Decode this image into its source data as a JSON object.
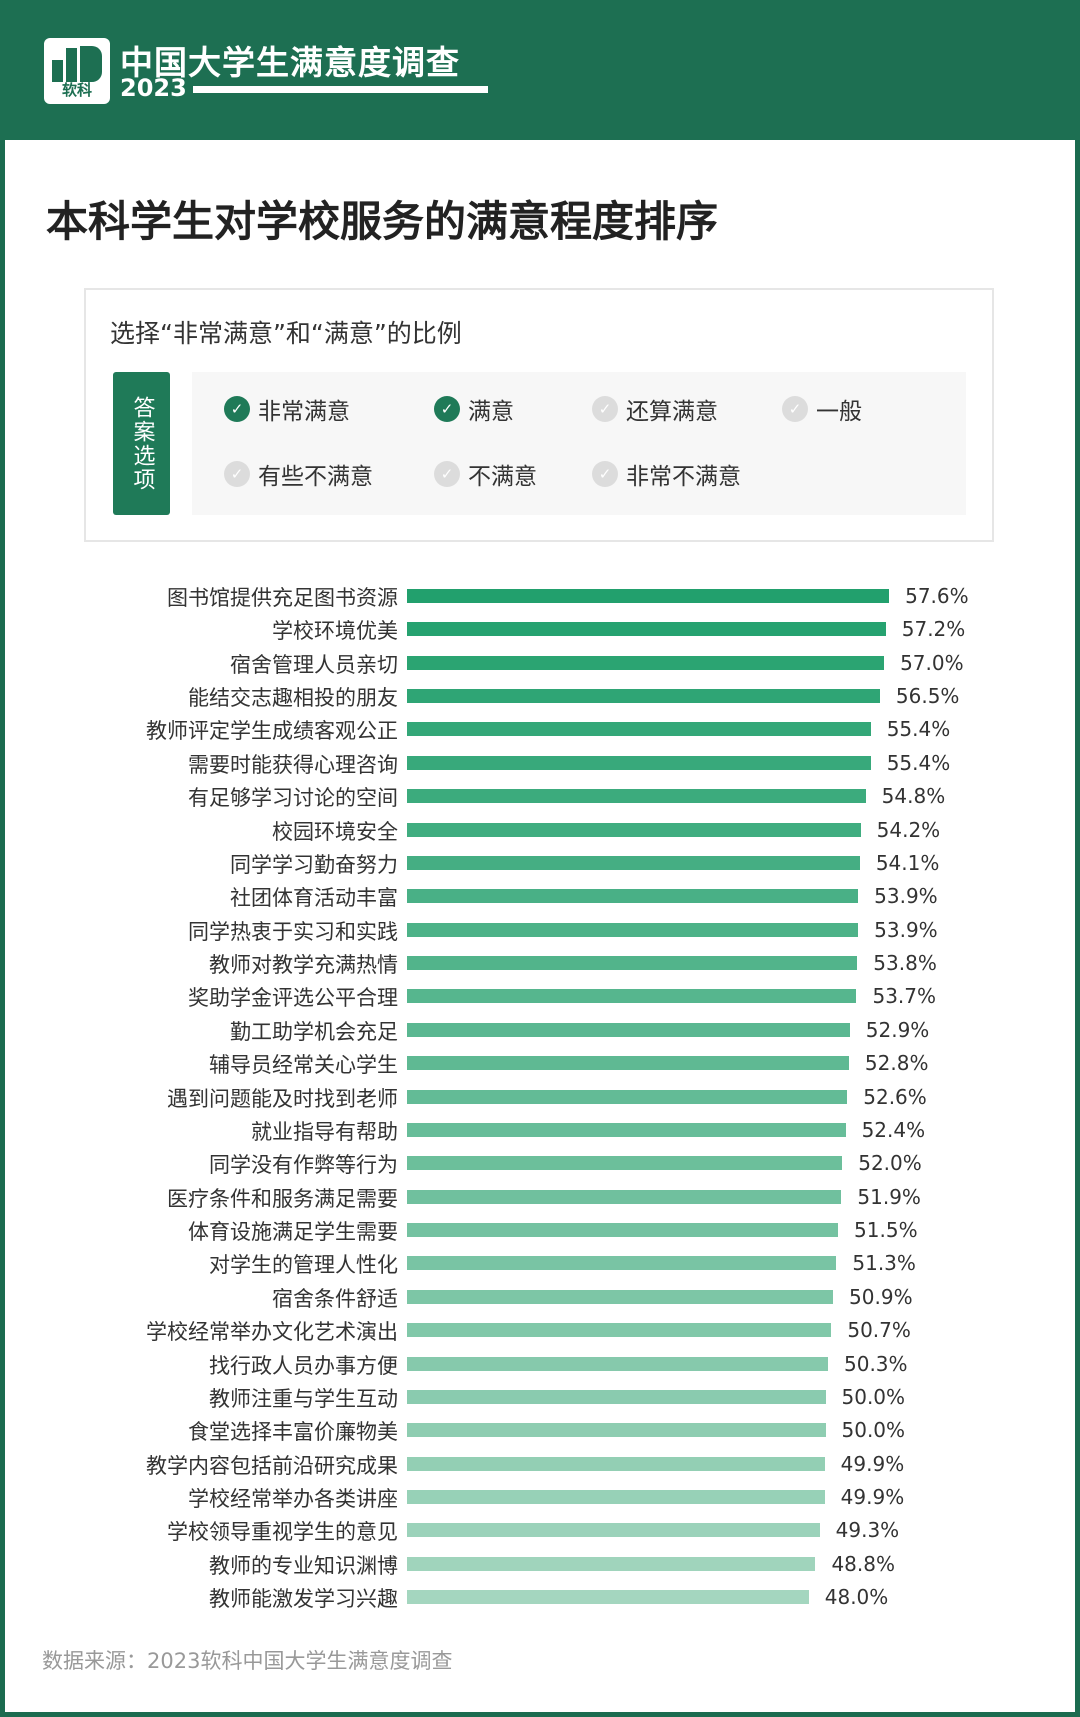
{
  "header": {
    "brand_title": "中国大学生满意度调查",
    "year": "2023",
    "logo_text": "软科"
  },
  "chart_data": {
    "type": "bar",
    "orientation": "horizontal",
    "title": "本科学生对学校服务的满意程度排序",
    "subtitle": "选择“非常满意”和“满意”的比例",
    "categories": [
      "图书馆提供充足图书资源",
      "学校环境优美",
      "宿舍管理人员亲切",
      "能结交志趣相投的朋友",
      "教师评定学生成绩客观公正",
      "需要时能获得心理咨询",
      "有足够学习讨论的空间",
      "校园环境安全",
      "同学学习勤奋努力",
      "社团体育活动丰富",
      "同学热衷于实习和实践",
      "教师对教学充满热情",
      "奖助学金评选公平合理",
      "勤工助学机会充足",
      "辅导员经常关心学生",
      "遇到问题能及时找到老师",
      "就业指导有帮助",
      "同学没有作弊等行为",
      "医疗条件和服务满足需要",
      "体育设施满足学生需要",
      "对学生的管理人性化",
      "宿舍条件舒适",
      "学校经常举办文化艺术演出",
      "找行政人员办事方便",
      "教师注重与学生互动",
      "食堂选择丰富价廉物美",
      "教学内容包括前沿研究成果",
      "学校经常举办各类讲座",
      "学校领导重视学生的意见",
      "教师的专业知识渊博",
      "教师能激发学习兴趣"
    ],
    "values": [
      57.6,
      57.2,
      57.0,
      56.5,
      55.4,
      55.4,
      54.8,
      54.2,
      54.1,
      53.9,
      53.9,
      53.8,
      53.7,
      52.9,
      52.8,
      52.6,
      52.4,
      52.0,
      51.9,
      51.5,
      51.3,
      50.9,
      50.7,
      50.3,
      50.0,
      50.0,
      49.9,
      49.9,
      49.3,
      48.8,
      48.0
    ],
    "value_labels": [
      "57.6%",
      "57.2%",
      "57.0%",
      "56.5%",
      "55.4%",
      "55.4%",
      "54.8%",
      "54.2%",
      "54.1%",
      "53.9%",
      "53.9%",
      "53.8%",
      "53.7%",
      "52.9%",
      "52.8%",
      "52.6%",
      "52.4%",
      "52.0%",
      "51.9%",
      "51.5%",
      "51.3%",
      "50.9%",
      "50.7%",
      "50.3%",
      "50.0%",
      "50.0%",
      "49.9%",
      "49.9%",
      "49.3%",
      "48.8%",
      "48.0%"
    ],
    "unit": "%",
    "colors": {
      "top": "#22a06d",
      "bottom": "#a4d6bf"
    }
  },
  "legend": {
    "tag": "答案选项",
    "options": [
      {
        "label": "非常满意",
        "checked": true
      },
      {
        "label": "满意",
        "checked": true
      },
      {
        "label": "还算满意",
        "checked": false
      },
      {
        "label": "一般",
        "checked": false
      },
      {
        "label": "有些不满意",
        "checked": false
      },
      {
        "label": "不满意",
        "checked": false
      },
      {
        "label": "非常不满意",
        "checked": false
      }
    ]
  },
  "footer": {
    "source": "数据来源：2023软科中国大学生满意度调查"
  }
}
